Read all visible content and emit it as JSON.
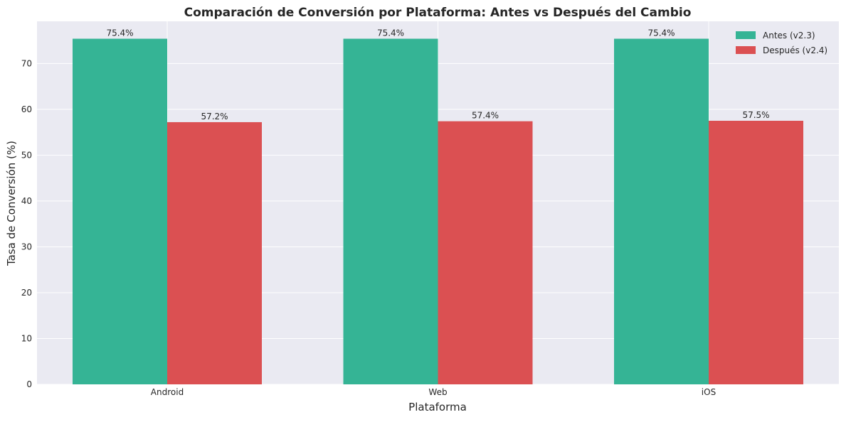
{
  "chart_data": {
    "type": "bar",
    "title": "Comparación de Conversión por Plataforma: Antes vs Después del Cambio",
    "xlabel": "Plataforma",
    "ylabel": "Tasa de Conversión (%)",
    "categories": [
      "Android",
      "Web",
      "iOS"
    ],
    "series": [
      {
        "name": "Antes (v2.3)",
        "values": [
          75.4,
          75.4,
          75.4
        ],
        "labels": [
          "75.4%",
          "75.4%",
          "75.4%"
        ],
        "color": "#35b495"
      },
      {
        "name": "Después (v2.4)",
        "values": [
          57.2,
          57.4,
          57.5
        ],
        "labels": [
          "57.2%",
          "57.4%",
          "57.5%"
        ],
        "color": "#db5052"
      }
    ],
    "ylim": [
      0,
      79.2
    ],
    "yticks": [
      0,
      10,
      20,
      30,
      40,
      50,
      60,
      70
    ],
    "grid": true,
    "legend_position": "top-right",
    "colors": {
      "plot_background": "#eaeaf2",
      "grid": "#ffffff",
      "text": "#262626"
    }
  }
}
